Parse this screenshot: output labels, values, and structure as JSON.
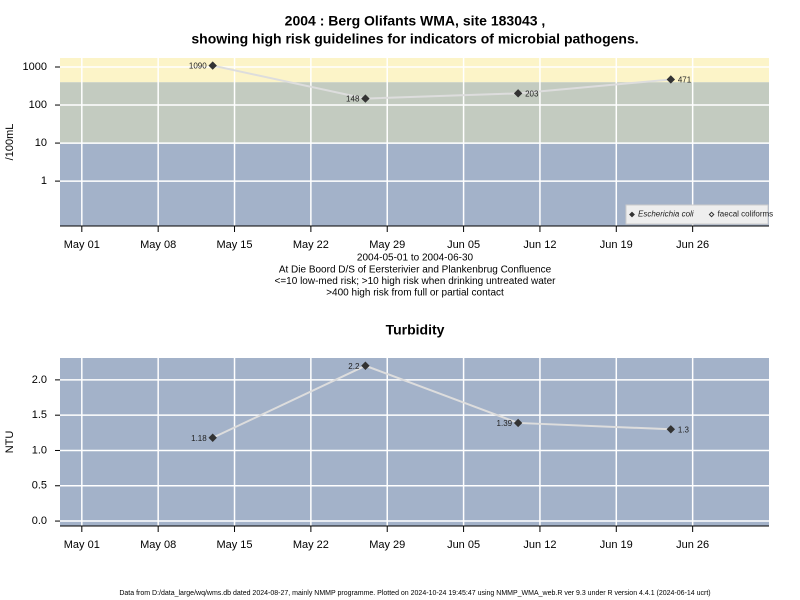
{
  "chart_data": [
    {
      "type": "line",
      "log_y": true,
      "title": [
        "2004 : Berg Olifants WMA, site 183043 ,",
        "showing high risk guidelines for indicators of microbial pathogens."
      ],
      "notes": [
        "2004-05-01 to 2004-06-30",
        "At Die Boord D/S of Eersterivier and Plankenbrug Confluence",
        "<=10 low-med risk; >10 high risk when drinking untreated water",
        ">400 high risk from full or partial contact"
      ],
      "ylabel": "/100mL",
      "x": [
        "2004-05-13",
        "2004-05-27",
        "2004-06-10",
        "2004-06-24"
      ],
      "series": [
        {
          "name": "Escherichia coli",
          "color": "#333333",
          "line_color": "#dddddd",
          "marker": "filled",
          "values": [
            1090,
            148,
            203,
            471
          ]
        },
        {
          "name": "faecal coliforms",
          "color": "#333333",
          "line_color": "#dddddd",
          "marker": "open",
          "values": [
            null,
            null,
            null,
            null
          ]
        }
      ],
      "thresholds": [
        10,
        400
      ],
      "band_colors": [
        "#a3b2c9",
        "#c3cbc0",
        "#fcf4c8"
      ],
      "xlim": [
        "2004-04-29",
        "2004-07-03"
      ],
      "xticks": [
        {
          "value": "2004-05-01",
          "label": "May 01"
        },
        {
          "value": "2004-05-08",
          "label": "May 08"
        },
        {
          "value": "2004-05-15",
          "label": "May 15"
        },
        {
          "value": "2004-05-22",
          "label": "May 22"
        },
        {
          "value": "2004-05-29",
          "label": "May 29"
        },
        {
          "value": "2004-06-05",
          "label": "Jun 05"
        },
        {
          "value": "2004-06-12",
          "label": "Jun 12"
        },
        {
          "value": "2004-06-19",
          "label": "Jun 19"
        },
        {
          "value": "2004-06-26",
          "label": "Jun 26"
        }
      ],
      "ylim": [
        0.066,
        1725
      ],
      "yticks": [
        1,
        10,
        100,
        1000
      ],
      "grid": true,
      "legend": "lower right"
    },
    {
      "type": "line",
      "log_y": false,
      "title": [
        "Turbidity"
      ],
      "ylabel": "NTU",
      "x": [
        "2004-05-13",
        "2004-05-27",
        "2004-06-10",
        "2004-06-24"
      ],
      "series": [
        {
          "name": "Turbidity",
          "color": "#333333",
          "line_color": "#dddddd",
          "marker": "filled",
          "values": [
            1.18,
            2.2,
            1.39,
            1.3
          ]
        }
      ],
      "band_colors": [
        "#a3b2c9"
      ],
      "xlim": [
        "2004-04-29",
        "2004-07-03"
      ],
      "xticks": [
        {
          "value": "2004-05-01",
          "label": "May 01"
        },
        {
          "value": "2004-05-08",
          "label": "May 08"
        },
        {
          "value": "2004-05-15",
          "label": "May 15"
        },
        {
          "value": "2004-05-22",
          "label": "May 22"
        },
        {
          "value": "2004-05-29",
          "label": "May 29"
        },
        {
          "value": "2004-06-05",
          "label": "Jun 05"
        },
        {
          "value": "2004-06-12",
          "label": "Jun 12"
        },
        {
          "value": "2004-06-19",
          "label": "Jun 19"
        },
        {
          "value": "2004-06-26",
          "label": "Jun 26"
        }
      ],
      "ylim": [
        -0.07,
        2.31
      ],
      "yticks": [
        {
          "value": 0,
          "label": "0.0"
        },
        0.5,
        {
          "value": 1,
          "label": "1.0"
        },
        1.5,
        {
          "value": 2,
          "label": "2.0"
        }
      ],
      "grid": true
    }
  ],
  "footer": "Data from D:/data_large/wq/wms.db dated 2024-08-27, mainly NMMP programme. Plotted on 2024-10-24 19:45:47 using NMMP_WMA_web.R ver 9.3 under R version 4.4.1 (2024-06-14 ucrt)"
}
